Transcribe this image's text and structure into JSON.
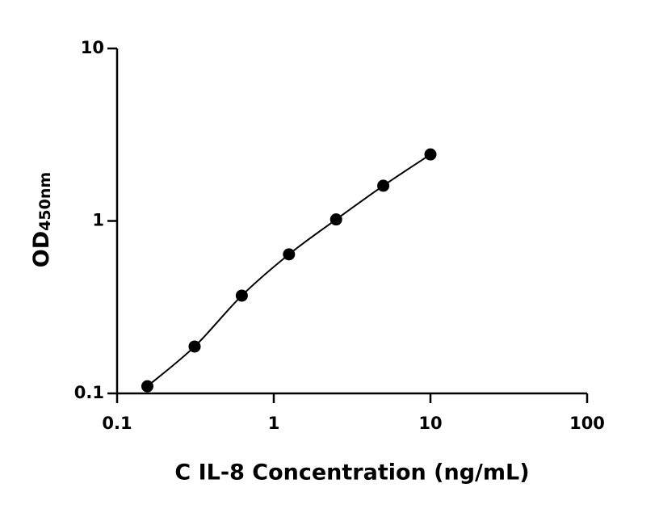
{
  "chart_data": {
    "type": "scatter",
    "xlabel": "C IL-8 Concentration (ng/mL)",
    "ylabel": "OD",
    "ylabel_subscript": "450nm",
    "x": [
      0.156,
      0.3125,
      0.625,
      1.25,
      2.5,
      5,
      10
    ],
    "values": [
      0.11,
      0.187,
      0.369,
      0.64,
      1.02,
      1.6,
      2.43
    ],
    "color": "#000000",
    "fit_line": true,
    "xlog": true,
    "ylog": true,
    "xlim": [
      0.1,
      100
    ],
    "ylim": [
      0.1,
      10
    ],
    "xticks": [
      0.1,
      1,
      10,
      100
    ],
    "yticks": [
      0.1,
      1,
      10
    ]
  }
}
